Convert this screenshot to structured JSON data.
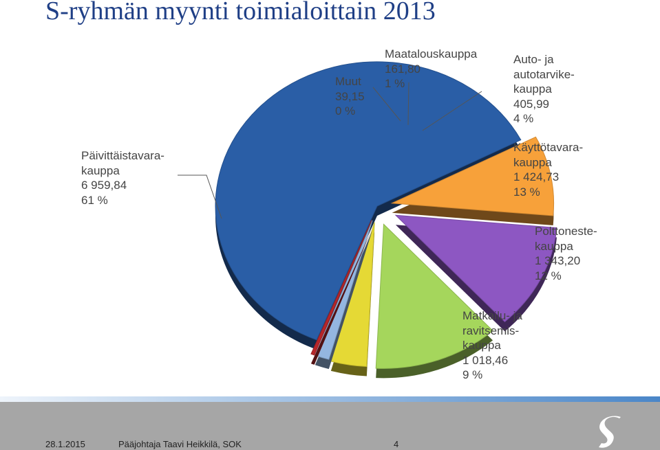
{
  "title": "S-ryhmän myynti toimialoittain 2013",
  "footer": {
    "date": "28.1.2015",
    "presenter": "Pääjohtaja Taavi Heikkilä, SOK",
    "page": "4"
  },
  "logo_icon": "s-group-logo-icon",
  "chart_data": {
    "type": "pie",
    "style": "3d-exploded",
    "slices": [
      {
        "label_lines": [
          "Päivittäistavara-",
          "kauppa"
        ],
        "value_text": "6 959,84",
        "percent_text": "61 %",
        "value": 6959.84,
        "color": "#2a5ea6"
      },
      {
        "label_lines": [
          "Matkailu- ja",
          "ravitsemis-",
          "kauppa"
        ],
        "value_text": "1 018,46",
        "percent_text": "9 %",
        "value": 1018.46,
        "color": "#f7a13a"
      },
      {
        "label_lines": [
          "Polttoneste-",
          "kauppa"
        ],
        "value_text": "1 343,20",
        "percent_text": "12 %",
        "value": 1343.2,
        "color": "#8d57c2"
      },
      {
        "label_lines": [
          "Käyttötavara-",
          "kauppa"
        ],
        "value_text": "1 424,73",
        "percent_text": "13 %",
        "value": 1424.73,
        "color": "#a5d65c"
      },
      {
        "label_lines": [
          "Auto- ja",
          "autotarvike-",
          "kauppa"
        ],
        "value_text": "405,99",
        "percent_text": "4 %",
        "value": 405.99,
        "color": "#e5d935"
      },
      {
        "label_lines": [
          "Maatalouskauppa"
        ],
        "value_text": "161,80",
        "percent_text": "1 %",
        "value": 161.8,
        "color": "#94b6e0"
      },
      {
        "label_lines": [
          "Muut"
        ],
        "value_text": "39,15",
        "percent_text": "0 %",
        "value": 39.15,
        "color": "#b7262a"
      }
    ]
  }
}
